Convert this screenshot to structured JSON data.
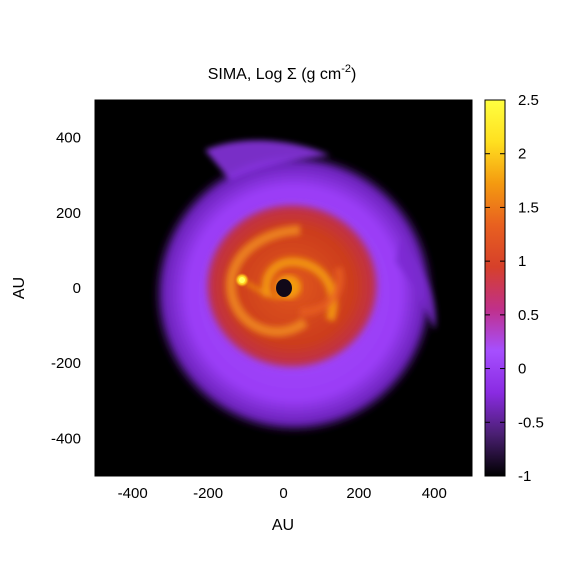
{
  "chart_data": {
    "type": "heatmap",
    "title": {
      "main": "SIMA, Log Σ (g cm",
      "superscript": "-2",
      "close": ")"
    },
    "xlabel": "AU",
    "ylabel": "AU",
    "xlim": [
      -500,
      500
    ],
    "ylim": [
      -500,
      500
    ],
    "x_ticks": [
      -400,
      -200,
      0,
      200,
      400
    ],
    "x_tick_labels": [
      "-400",
      "-200",
      "0",
      "200",
      "400"
    ],
    "y_ticks": [
      -400,
      -200,
      0,
      200,
      400
    ],
    "y_tick_labels": [
      "-400",
      "-200",
      "0",
      "200",
      "400"
    ],
    "colorbar": {
      "range": [
        -1,
        2.5
      ],
      "ticks": [
        -1,
        -0.5,
        0,
        0.5,
        1,
        1.5,
        2,
        2.5
      ],
      "tick_labels": [
        "-1",
        "-0.5",
        "0",
        "0.5",
        "1",
        "1.5",
        "2",
        "2.5"
      ],
      "colors": [
        "#000000",
        "#4a1f72",
        "#8a2be2",
        "#a64fff",
        "#c0308a",
        "#d6402a",
        "#e86020",
        "#f49a10",
        "#ffe020",
        "#ffff40"
      ]
    },
    "features": {
      "outer_disk": {
        "log_sigma": 0.0,
        "radius_au": 360
      },
      "inner_disk": {
        "log_sigma": 1.1,
        "radius_au": 200
      },
      "spiral_arms": {
        "log_sigma": 1.6
      },
      "planet": {
        "x_au": -115,
        "y_au": 20,
        "log_sigma": 2.5
      },
      "central_cavity": {
        "x_au": 0,
        "y_au": 0,
        "log_sigma": -1.0
      }
    }
  }
}
